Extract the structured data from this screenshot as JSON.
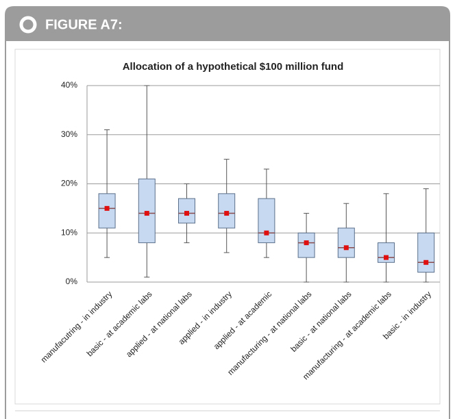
{
  "header": {
    "title": "FIGURE A7:"
  },
  "chart_data": {
    "type": "box",
    "title": "Allocation of a hypothetical $100 million fund",
    "categories": [
      "manufacutring - in industry",
      "basic - at academic labs",
      "applied - at national labs",
      "applied - in industry",
      "applied - at academic",
      "manufacturing - at national labs",
      "basic - at national labs",
      "manufacturing - at academic labs",
      "basic - in industry"
    ],
    "series": [
      {
        "color": "#c6d9f1",
        "mean_color": "#e01010",
        "min": [
          5,
          1,
          8,
          6,
          5,
          0,
          0,
          0,
          0
        ],
        "q1": [
          11,
          8,
          12,
          11,
          8,
          5,
          5,
          4,
          2
        ],
        "median": [
          15,
          14,
          14,
          14,
          10,
          8,
          7,
          5,
          4
        ],
        "q3": [
          18,
          21,
          17,
          18,
          17,
          10,
          11,
          8,
          10
        ],
        "max": [
          31,
          40,
          20,
          25,
          23,
          14,
          16,
          18,
          19
        ],
        "mean": [
          15,
          14,
          14,
          14,
          10,
          8,
          7,
          5,
          4
        ]
      }
    ],
    "ylim": [
      0,
      40
    ],
    "yticks": [
      {
        "value": 0,
        "label": "0%"
      },
      {
        "value": 10,
        "label": "10%"
      },
      {
        "value": 20,
        "label": "20%"
      },
      {
        "value": 30,
        "label": "30%"
      },
      {
        "value": 40,
        "label": "40%"
      }
    ],
    "grid": true
  }
}
